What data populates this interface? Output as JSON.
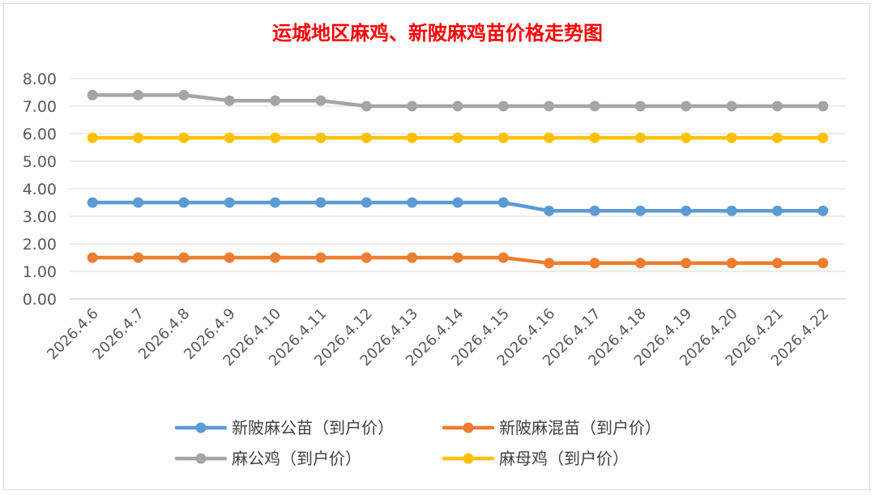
{
  "chart_data": {
    "type": "line",
    "title": "运城地区麻鸡、新陂麻鸡苗价格走势图",
    "xlabel": "",
    "ylabel": "",
    "ylim": [
      0,
      8
    ],
    "y_ticks": [
      "0.00",
      "1.00",
      "2.00",
      "3.00",
      "4.00",
      "5.00",
      "6.00",
      "7.00",
      "8.00"
    ],
    "grid": true,
    "legend_position": "bottom",
    "categories": [
      "2026.4.6",
      "2026.4.7",
      "2026.4.8",
      "2026.4.9",
      "2026.4.10",
      "2026.4.11",
      "2026.4.12",
      "2026.4.13",
      "2026.4.14",
      "2026.4.15",
      "2026.4.16",
      "2026.4.17",
      "2026.4.18",
      "2026.4.19",
      "2026.4.20",
      "2026.4.21",
      "2026.4.22"
    ],
    "series": [
      {
        "name": "新陂麻公苗（到户价）",
        "color": "#5b9bd5",
        "values": [
          3.5,
          3.5,
          3.5,
          3.5,
          3.5,
          3.5,
          3.5,
          3.5,
          3.5,
          3.5,
          3.2,
          3.2,
          3.2,
          3.2,
          3.2,
          3.2,
          3.2
        ]
      },
      {
        "name": "新陂麻混苗（到户价）",
        "color": "#ed7d31",
        "values": [
          1.5,
          1.5,
          1.5,
          1.5,
          1.5,
          1.5,
          1.5,
          1.5,
          1.5,
          1.5,
          1.3,
          1.3,
          1.3,
          1.3,
          1.3,
          1.3,
          1.3
        ]
      },
      {
        "name": "麻公鸡（到户价）",
        "color": "#a5a5a5",
        "values": [
          7.4,
          7.4,
          7.4,
          7.2,
          7.2,
          7.2,
          7.0,
          7.0,
          7.0,
          7.0,
          7.0,
          7.0,
          7.0,
          7.0,
          7.0,
          7.0,
          7.0
        ]
      },
      {
        "name": "麻母鸡（到户价）",
        "color": "#ffc000",
        "values": [
          5.85,
          5.85,
          5.85,
          5.85,
          5.85,
          5.85,
          5.85,
          5.85,
          5.85,
          5.85,
          5.85,
          5.85,
          5.85,
          5.85,
          5.85,
          5.85,
          5.85
        ]
      }
    ]
  }
}
